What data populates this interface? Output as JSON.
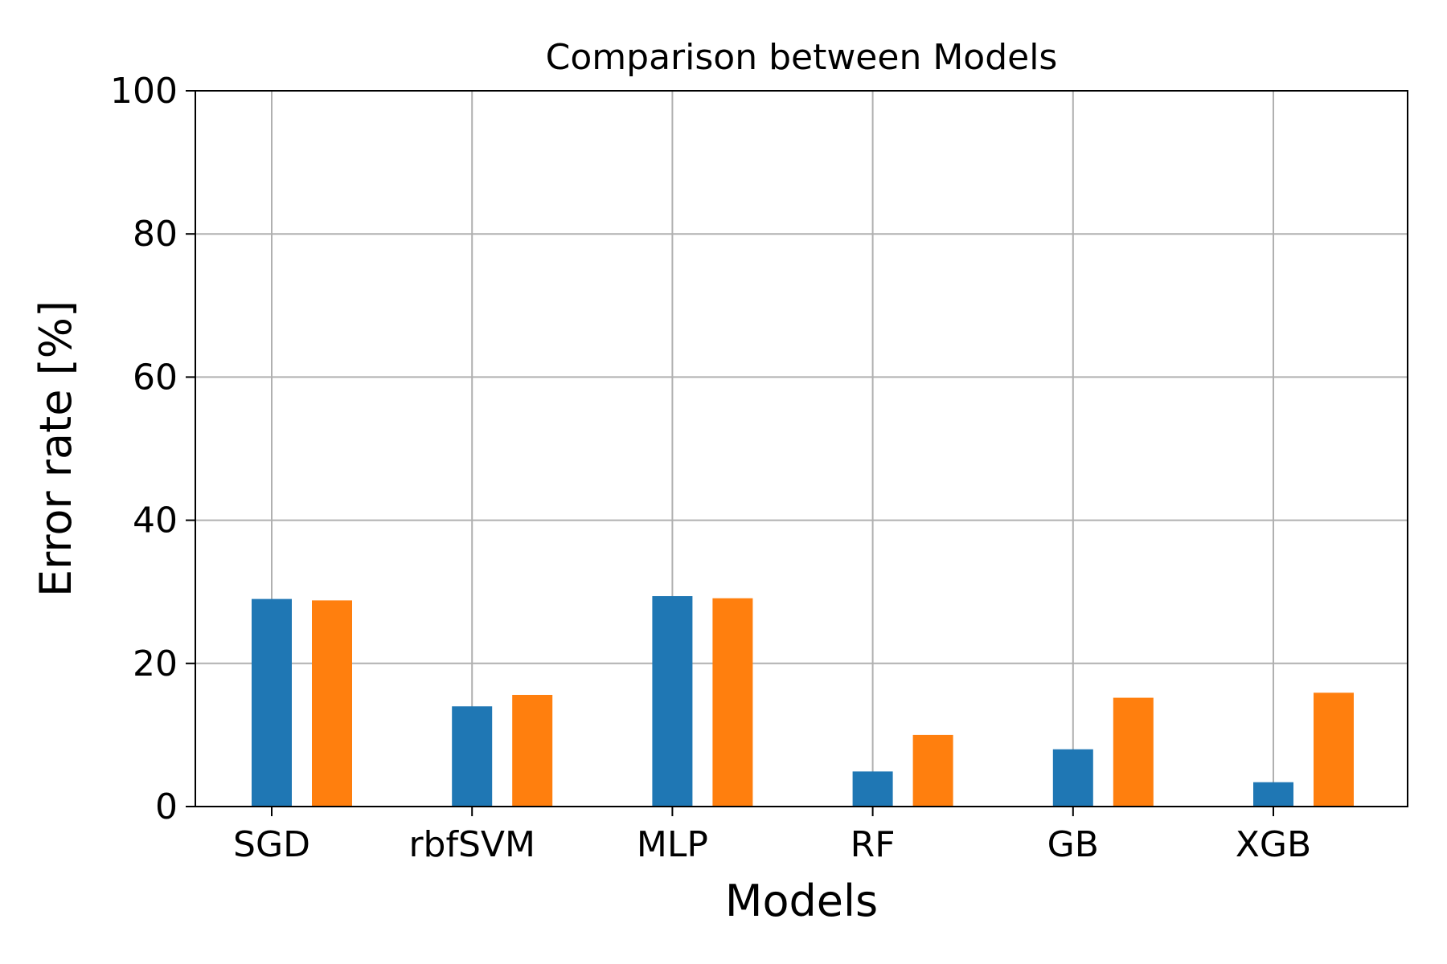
{
  "chart_data": {
    "type": "bar",
    "title": "Comparison between Models",
    "xlabel": "Models",
    "ylabel": "Error rate [%]",
    "categories": [
      "SGD",
      "rbfSVM",
      "MLP",
      "RF",
      "GB",
      "XGB"
    ],
    "series": [
      {
        "values": [
          29.0,
          14.0,
          29.4,
          4.9,
          8.0,
          3.4
        ],
        "color": "#1f77b4"
      },
      {
        "values": [
          28.8,
          15.6,
          29.1,
          10.0,
          15.2,
          15.9
        ],
        "color": "#ff7f0e"
      }
    ],
    "ylim": [
      0,
      100
    ],
    "yticks": [
      "0",
      "20",
      "40",
      "60",
      "80",
      "100"
    ],
    "grid": true
  }
}
